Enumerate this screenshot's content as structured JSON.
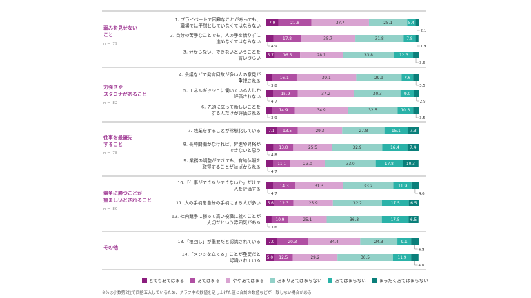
{
  "chart_data": {
    "type": "bar",
    "orientation": "horizontal",
    "stacked": true,
    "xlim": [
      0,
      100
    ],
    "grid": false,
    "legend_position": "bottom",
    "series": [
      {
        "name": "とてもあてはまる",
        "color": "#8b1d7d"
      },
      {
        "name": "あてはまる",
        "color": "#b04fa3"
      },
      {
        "name": "ややあてはまる",
        "color": "#d9a3d1"
      },
      {
        "name": "あまりあてはまらない",
        "color": "#92d1c8"
      },
      {
        "name": "あてはまらない",
        "color": "#2ab2a8"
      },
      {
        "name": "まったくあてはまらない",
        "color": "#0a7f7a"
      }
    ],
    "groups": [
      {
        "label": [
          "弱みを見せない",
          "こと"
        ],
        "n": "n = .79",
        "items": [
          1,
          2,
          3
        ]
      },
      {
        "label": [
          "力強さや",
          "スタミナがあること"
        ],
        "n": "n = .82",
        "items": [
          4,
          5,
          6
        ]
      },
      {
        "label": [
          "仕事を最優先",
          "すること"
        ],
        "n": "n = .78",
        "items": [
          7,
          8,
          9
        ]
      },
      {
        "label": [
          "競争に勝つことが",
          "望ましいとされること"
        ],
        "n": "n = .80",
        "items": [
          10,
          11,
          12
        ]
      },
      {
        "label": [
          "その他"
        ],
        "n": "",
        "items": [
          13,
          14
        ]
      }
    ],
    "items": [
      {
        "label": [
          "1. プライベートで困難なことがあっても、",
          "職場では平然としていなくてはならない"
        ],
        "values": [
          7.9,
          21.8,
          37.7,
          25.1,
          5.4,
          2.1
        ]
      },
      {
        "label": [
          "2. 自分の苦手なことでも、人の手を借りずに",
          "進めなくてはならない"
        ],
        "values": [
          4.9,
          17.8,
          35.7,
          31.8,
          7.8,
          1.9
        ]
      },
      {
        "label": [
          "3. 分からない、できないということを",
          "言いづらい"
        ],
        "values": [
          5.7,
          16.5,
          28.1,
          33.8,
          12.3,
          3.6
        ]
      },
      {
        "label": [
          "4. 会議などで発言回数が多い人の意見が",
          "重視される"
        ],
        "values": [
          3.8,
          16.1,
          39.1,
          29.9,
          7.6,
          3.5
        ]
      },
      {
        "label": [
          "5. エネルギッシュに働いている人しか",
          "評価されない"
        ],
        "values": [
          4.7,
          15.9,
          37.2,
          30.3,
          9.0,
          2.9
        ]
      },
      {
        "label": [
          "6. 先頭に立って新しいことを",
          "する人だけが評価される"
        ],
        "values": [
          3.9,
          14.9,
          34.9,
          32.5,
          10.3,
          3.5
        ]
      },
      {
        "label": [
          "7. 残業をすることが常態化している"
        ],
        "values": [
          7.1,
          13.5,
          29.3,
          27.8,
          15.1,
          7.3
        ]
      },
      {
        "label": [
          "8. 長時間働かなければ、昇進や昇格が",
          "できないと思う"
        ],
        "values": [
          4.8,
          13.0,
          25.5,
          32.9,
          16.4,
          7.4
        ]
      },
      {
        "label": [
          "9. 業務の調整ができても、有給休暇を",
          "取得することがはばかられる"
        ],
        "values": [
          4.7,
          11.1,
          23.0,
          33.0,
          17.8,
          10.3
        ]
      },
      {
        "label": [
          "10.「仕事ができるかできないか」だけで",
          "人を評価する"
        ],
        "values": [
          4.7,
          14.3,
          31.3,
          33.2,
          11.9,
          4.6
        ]
      },
      {
        "label": [
          "11. 人の手柄を自分の手柄にする人が多い"
        ],
        "values": [
          5.6,
          12.3,
          25.9,
          32.2,
          17.5,
          6.5
        ]
      },
      {
        "label": [
          "12. 社内競争に勝って高い役職に就くことが",
          "大切だという雰囲気がある"
        ],
        "values": [
          3.6,
          10.9,
          25.1,
          36.3,
          17.5,
          6.5
        ]
      },
      {
        "label": [
          "13.「根回し」が重要だと認識されている"
        ],
        "values": [
          7.0,
          20.3,
          34.4,
          24.3,
          9.1,
          4.9
        ]
      },
      {
        "label": [
          "14.「メンツを立てる」ことが重要だと",
          "認識されている"
        ],
        "values": [
          5.0,
          12.5,
          29.2,
          36.5,
          11.9,
          4.8
        ]
      }
    ],
    "note": "※%は小数第2位で四捨五入しているため、グラフ中の数値を足し上げた値と合計の数値などが一致しない場合がある"
  }
}
